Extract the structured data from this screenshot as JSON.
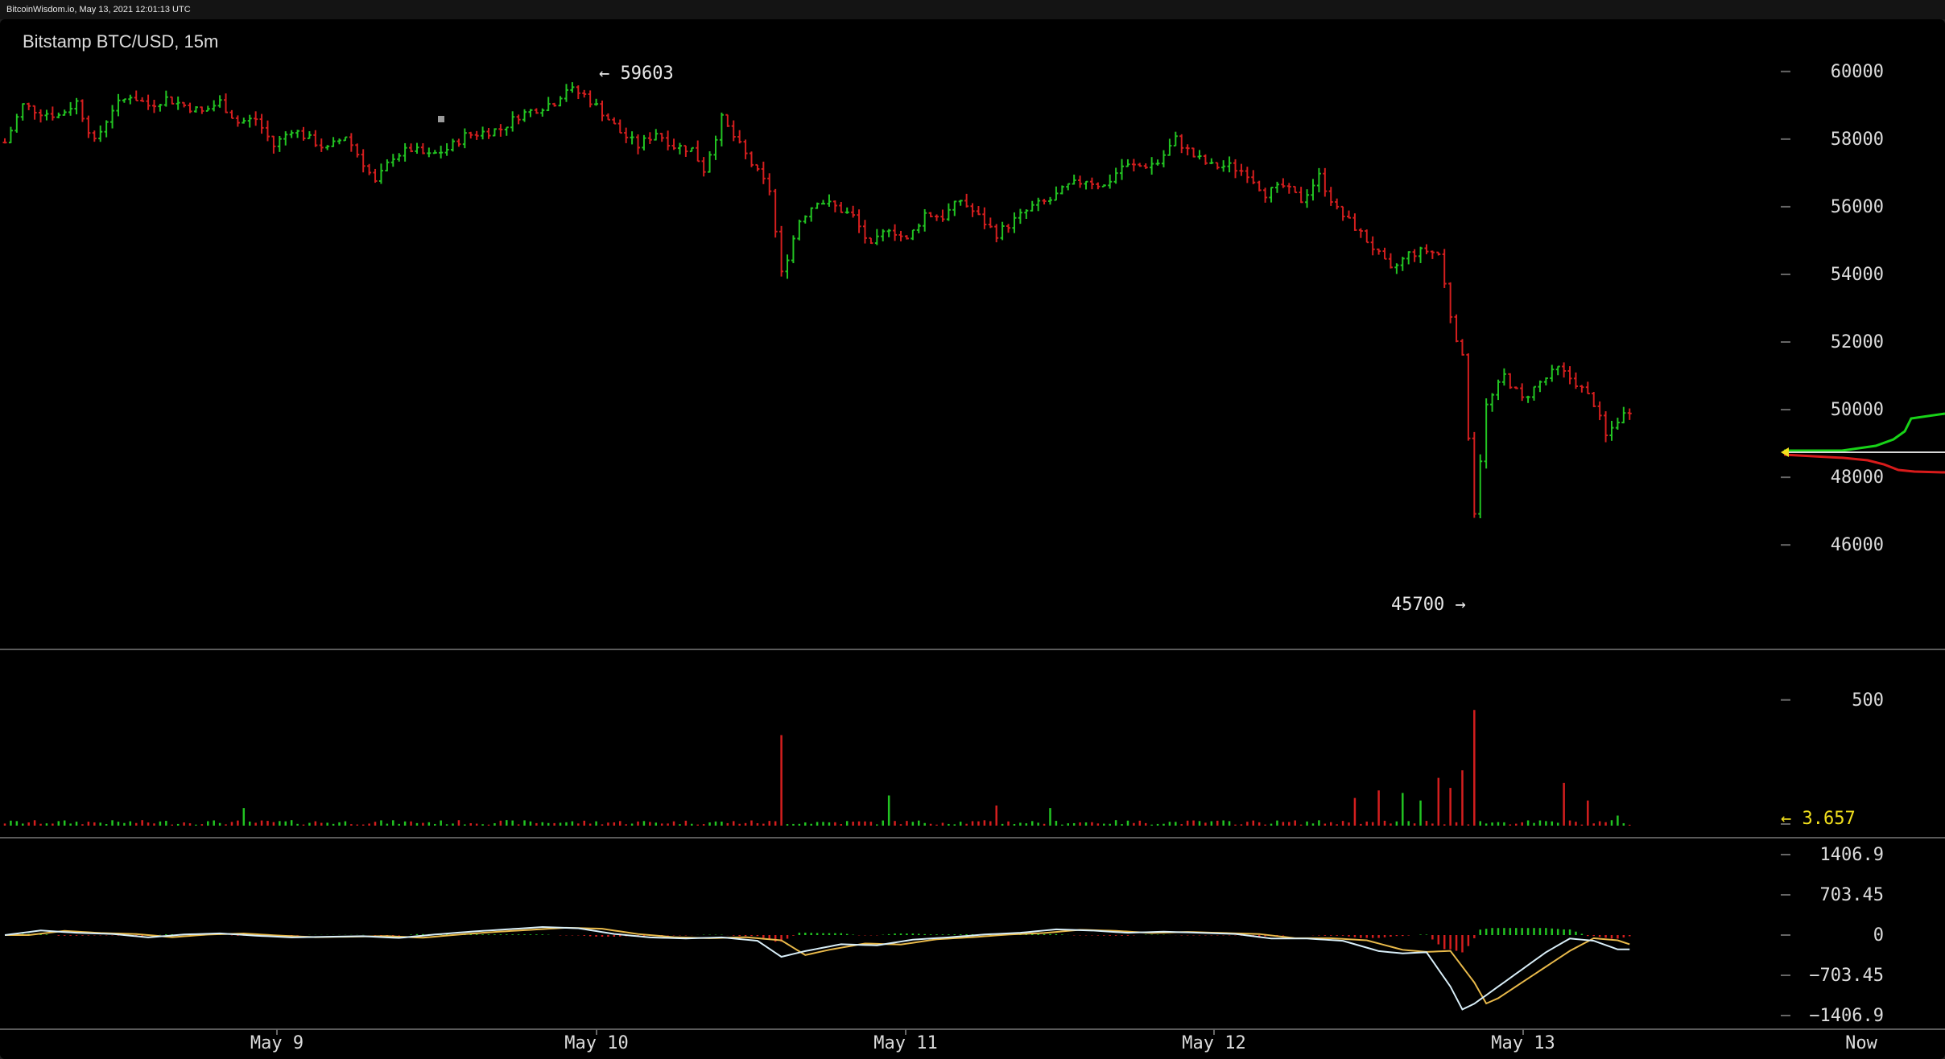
{
  "header": {
    "timestamp_line": "BitcoinWisdom.io, May 13, 2021 12:01:13 UTC"
  },
  "chart_data": {
    "type": "candlestick",
    "title": "Bitstamp BTC/USD, 15m",
    "price_axis": {
      "ticks": [
        "60000",
        "58000",
        "56000",
        "54000",
        "52000",
        "50000",
        "48000",
        "46000"
      ],
      "ylim": [
        44600,
        60400
      ]
    },
    "volume_axis": {
      "ticks": [
        "500"
      ],
      "ylim": [
        0,
        640
      ]
    },
    "macd_axis": {
      "ticks": [
        "1406.9",
        "703.45",
        "0",
        "−703.45",
        "−1406.9"
      ],
      "ylim": [
        -1406.9,
        1406.9
      ]
    },
    "x_ticks": [
      "May 9",
      "May 10",
      "May 11",
      "May 12",
      "May 13",
      "Now"
    ],
    "annotations": {
      "high": "59603",
      "low": "45700",
      "current_volume": "3.657"
    },
    "price_path": [
      [
        0,
        57900
      ],
      [
        3,
        59000
      ],
      [
        6,
        58800
      ],
      [
        9,
        58700
      ],
      [
        12,
        59100
      ],
      [
        15,
        57900
      ],
      [
        18,
        58900
      ],
      [
        21,
        59300
      ],
      [
        24,
        59000
      ],
      [
        27,
        59200
      ],
      [
        30,
        59000
      ],
      [
        33,
        58800
      ],
      [
        36,
        59100
      ],
      [
        39,
        58500
      ],
      [
        42,
        58600
      ],
      [
        45,
        57800
      ],
      [
        48,
        58300
      ],
      [
        51,
        58000
      ],
      [
        54,
        57700
      ],
      [
        57,
        58100
      ],
      [
        60,
        57300
      ],
      [
        62,
        56700
      ],
      [
        65,
        57500
      ],
      [
        68,
        57700
      ],
      [
        71,
        57500
      ],
      [
        74,
        57700
      ],
      [
        77,
        58100
      ],
      [
        80,
        58200
      ],
      [
        83,
        58300
      ],
      [
        86,
        58700
      ],
      [
        89,
        58900
      ],
      [
        92,
        59100
      ],
      [
        94,
        59500
      ],
      [
        97,
        59300
      ],
      [
        100,
        58800
      ],
      [
        103,
        58200
      ],
      [
        106,
        57800
      ],
      [
        109,
        58200
      ],
      [
        112,
        57800
      ],
      [
        115,
        57700
      ],
      [
        117,
        57100
      ],
      [
        120,
        58600
      ],
      [
        123,
        57800
      ],
      [
        126,
        57000
      ],
      [
        128,
        56500
      ],
      [
        130,
        54000
      ],
      [
        133,
        55600
      ],
      [
        136,
        56200
      ],
      [
        139,
        56000
      ],
      [
        142,
        55700
      ],
      [
        145,
        54800
      ],
      [
        148,
        55400
      ],
      [
        151,
        55000
      ],
      [
        154,
        55800
      ],
      [
        157,
        55700
      ],
      [
        160,
        56200
      ],
      [
        163,
        55700
      ],
      [
        166,
        55200
      ],
      [
        169,
        55600
      ],
      [
        172,
        56000
      ],
      [
        175,
        56200
      ],
      [
        178,
        56600
      ],
      [
        181,
        56800
      ],
      [
        184,
        56600
      ],
      [
        187,
        57200
      ],
      [
        190,
        57200
      ],
      [
        193,
        57300
      ],
      [
        196,
        58000
      ],
      [
        199,
        57500
      ],
      [
        202,
        57200
      ],
      [
        205,
        57200
      ],
      [
        208,
        57000
      ],
      [
        211,
        56400
      ],
      [
        214,
        56600
      ],
      [
        217,
        56200
      ],
      [
        220,
        56900
      ],
      [
        223,
        55900
      ],
      [
        226,
        55400
      ],
      [
        229,
        54800
      ],
      [
        232,
        54100
      ],
      [
        235,
        54600
      ],
      [
        238,
        54700
      ],
      [
        240,
        54600
      ],
      [
        242,
        52800
      ],
      [
        244,
        51500
      ],
      [
        246,
        47000
      ],
      [
        248,
        50100
      ],
      [
        251,
        51000
      ],
      [
        254,
        50300
      ],
      [
        257,
        50800
      ],
      [
        260,
        51200
      ],
      [
        263,
        50800
      ],
      [
        266,
        50200
      ],
      [
        268,
        49200
      ],
      [
        270,
        49700
      ],
      [
        272,
        50000
      ]
    ],
    "volume_spikes": [
      [
        130,
        360
      ],
      [
        246,
        460
      ],
      [
        244,
        220
      ],
      [
        242,
        150
      ],
      [
        240,
        190
      ],
      [
        237,
        100
      ],
      [
        261,
        170
      ],
      [
        265,
        100
      ],
      [
        270,
        40
      ],
      [
        272,
        3.657
      ],
      [
        40,
        70
      ],
      [
        148,
        120
      ],
      [
        166,
        80
      ],
      [
        175,
        70
      ],
      [
        226,
        110
      ],
      [
        230,
        140
      ],
      [
        234,
        130
      ]
    ],
    "macd_path": [
      [
        0,
        0
      ],
      [
        6,
        80
      ],
      [
        12,
        40
      ],
      [
        18,
        20
      ],
      [
        24,
        -40
      ],
      [
        30,
        10
      ],
      [
        36,
        30
      ],
      [
        42,
        -10
      ],
      [
        48,
        -40
      ],
      [
        54,
        -30
      ],
      [
        60,
        -20
      ],
      [
        66,
        -50
      ],
      [
        72,
        10
      ],
      [
        78,
        60
      ],
      [
        84,
        100
      ],
      [
        90,
        140
      ],
      [
        96,
        120
      ],
      [
        102,
        20
      ],
      [
        108,
        -40
      ],
      [
        114,
        -60
      ],
      [
        120,
        -40
      ],
      [
        126,
        -100
      ],
      [
        130,
        -380
      ],
      [
        134,
        -280
      ],
      [
        140,
        -160
      ],
      [
        146,
        -180
      ],
      [
        152,
        -80
      ],
      [
        158,
        -40
      ],
      [
        164,
        10
      ],
      [
        170,
        40
      ],
      [
        176,
        100
      ],
      [
        182,
        80
      ],
      [
        188,
        40
      ],
      [
        194,
        60
      ],
      [
        200,
        40
      ],
      [
        206,
        20
      ],
      [
        212,
        -60
      ],
      [
        218,
        -60
      ],
      [
        224,
        -100
      ],
      [
        230,
        -280
      ],
      [
        234,
        -320
      ],
      [
        238,
        -300
      ],
      [
        242,
        -900
      ],
      [
        244,
        -1300
      ],
      [
        246,
        -1200
      ],
      [
        250,
        -900
      ],
      [
        254,
        -600
      ],
      [
        258,
        -300
      ],
      [
        262,
        -60
      ],
      [
        266,
        -100
      ],
      [
        270,
        -250
      ],
      [
        272,
        -250
      ]
    ]
  }
}
